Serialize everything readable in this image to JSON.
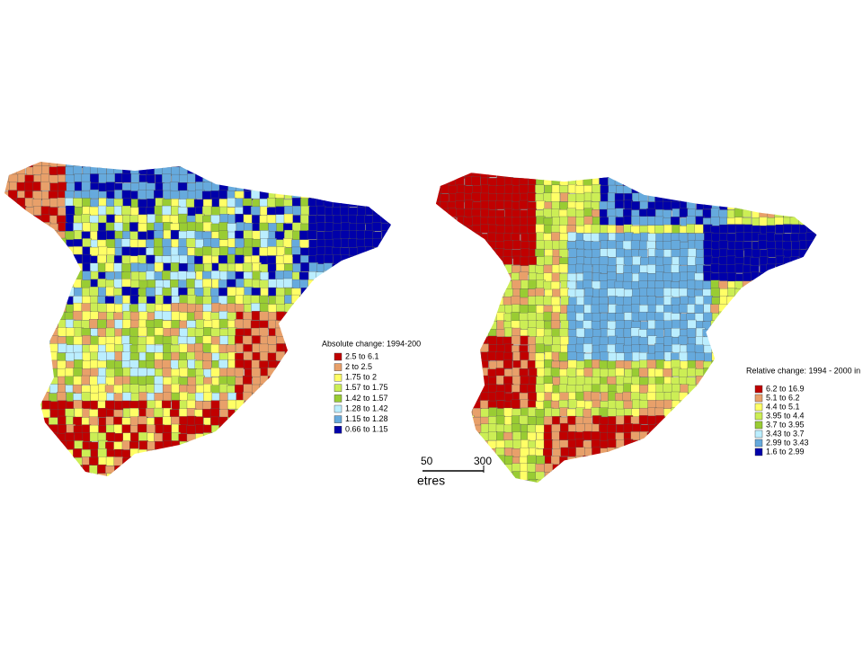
{
  "maps": [
    {
      "legend_title": "Absolute change: 1994-200",
      "legend": [
        {
          "label": "2.5    to 6.1",
          "color": "#c00000"
        },
        {
          "label": "2      to 2.5",
          "color": "#e8a06a"
        },
        {
          "label": "1.75 to 2",
          "color": "#ffff66"
        },
        {
          "label": "1.57 to 1.75",
          "color": "#ccee55"
        },
        {
          "label": "1.42 to 1.57",
          "color": "#99cc33"
        },
        {
          "label": "1.28 to 1.42",
          "color": "#bbeeff"
        },
        {
          "label": "1.15 to 1.28",
          "color": "#66aadd"
        },
        {
          "label": "0.66 to 1.15",
          "color": "#0000aa"
        }
      ]
    },
    {
      "legend_title": "Relative change: 1994 - 2000 in",
      "legend": [
        {
          "label": "6.2   to 16.9",
          "color": "#c00000"
        },
        {
          "label": "5.1   to   6.2",
          "color": "#e8a06a"
        },
        {
          "label": "4.4   to   5.1",
          "color": "#ffff66"
        },
        {
          "label": "3.95 to   4.4",
          "color": "#ccee55"
        },
        {
          "label": "3.7   to   3.95",
          "color": "#99cc33"
        },
        {
          "label": "3.43 to   3.7",
          "color": "#bbeeff"
        },
        {
          "label": "2.99 to   3.43",
          "color": "#66aadd"
        },
        {
          "label": "1.6   to   2.99",
          "color": "#0000aa"
        }
      ]
    }
  ],
  "scale_bar": {
    "labels": [
      "50",
      "300"
    ],
    "unit": "etres"
  }
}
